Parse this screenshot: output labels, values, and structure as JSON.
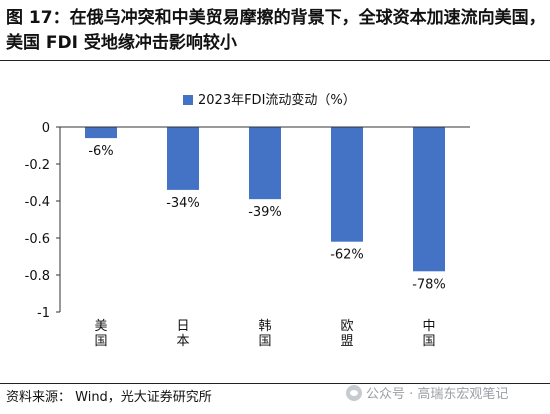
{
  "title": "图 17：在俄乌冲突和中美贸易摩擦的背景下，全球资本加速流向美国，美国 FDI 受地缘冲击影响较小",
  "source": "资料来源： Wind，光大证券研究所",
  "watermark": "公众号 · 高瑞东宏观笔记",
  "chart_data": {
    "type": "bar",
    "title": "",
    "xlabel": "",
    "ylabel": "",
    "categories": [
      "美国",
      "日本",
      "韩国",
      "欧盟",
      "中国"
    ],
    "series": [
      {
        "name": "2023年FDI流动变动（%）",
        "values": [
          -0.06,
          -0.34,
          -0.39,
          -0.62,
          -0.78
        ],
        "labels": [
          "-6%",
          "-34%",
          "-39%",
          "-62%",
          "-78%"
        ],
        "color": "#4472c4"
      }
    ],
    "ylim": [
      -1,
      0
    ],
    "yticks": [
      0,
      -0.2,
      -0.4,
      -0.6,
      -0.8,
      -1
    ],
    "ytick_labels": [
      "0",
      "-0.2",
      "-0.4",
      "-0.6",
      "-0.8",
      "-1"
    ],
    "grid": false,
    "legend_position": "top"
  }
}
